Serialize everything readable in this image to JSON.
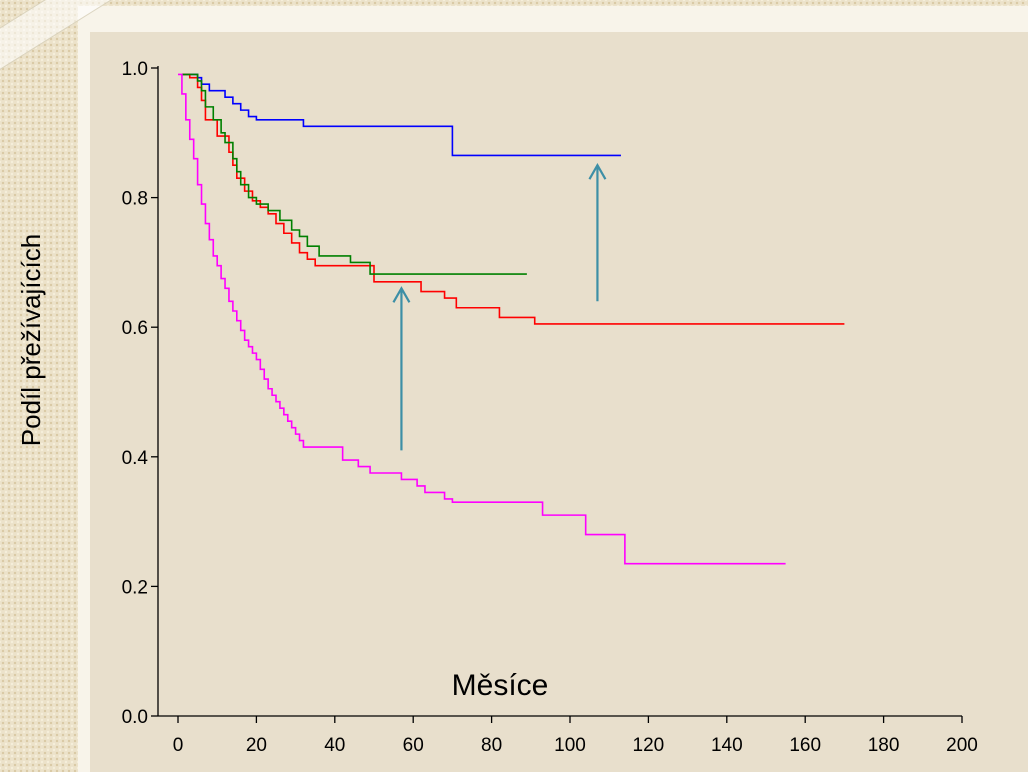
{
  "chart_data": {
    "type": "line",
    "title": "",
    "xlabel": "Měsíce",
    "ylabel": "Podíl přežívajících",
    "xlim": [
      0,
      200
    ],
    "ylim": [
      0.0,
      1.0
    ],
    "x_ticks": [
      "0",
      "20",
      "40",
      "60",
      "80",
      "100",
      "120",
      "140",
      "160",
      "180",
      "200"
    ],
    "y_ticks": [
      "0.0",
      "0.2",
      "0.4",
      "0.6",
      "0.8",
      "1.0"
    ],
    "grid": false,
    "legend": "none",
    "step": true,
    "series": [
      {
        "color": "#0000ff",
        "points": [
          [
            1,
            0.99
          ],
          [
            5,
            0.985
          ],
          [
            6,
            0.975
          ],
          [
            8,
            0.965
          ],
          [
            12,
            0.955
          ],
          [
            14,
            0.945
          ],
          [
            16,
            0.935
          ],
          [
            18,
            0.925
          ],
          [
            20,
            0.92
          ],
          [
            32,
            0.91
          ],
          [
            70,
            0.865
          ],
          [
            113,
            0.865
          ]
        ]
      },
      {
        "color": "#ff0000",
        "points": [
          [
            1,
            0.99
          ],
          [
            3,
            0.985
          ],
          [
            5,
            0.97
          ],
          [
            6,
            0.95
          ],
          [
            7,
            0.92
          ],
          [
            10,
            0.895
          ],
          [
            13,
            0.87
          ],
          [
            14,
            0.85
          ],
          [
            15,
            0.83
          ],
          [
            17,
            0.81
          ],
          [
            19,
            0.795
          ],
          [
            21,
            0.785
          ],
          [
            23,
            0.775
          ],
          [
            25,
            0.76
          ],
          [
            27,
            0.745
          ],
          [
            29,
            0.73
          ],
          [
            31,
            0.715
          ],
          [
            33,
            0.705
          ],
          [
            35,
            0.695
          ],
          [
            50,
            0.67
          ],
          [
            58,
            0.67
          ],
          [
            62,
            0.655
          ],
          [
            68,
            0.645
          ],
          [
            71,
            0.63
          ],
          [
            82,
            0.615
          ],
          [
            91,
            0.605
          ],
          [
            170,
            0.605
          ]
        ]
      },
      {
        "color": "#008000",
        "points": [
          [
            1,
            0.99
          ],
          [
            5,
            0.98
          ],
          [
            6,
            0.965
          ],
          [
            7,
            0.94
          ],
          [
            9,
            0.92
          ],
          [
            11,
            0.9
          ],
          [
            12,
            0.885
          ],
          [
            14,
            0.86
          ],
          [
            15,
            0.84
          ],
          [
            16,
            0.82
          ],
          [
            18,
            0.8
          ],
          [
            20,
            0.79
          ],
          [
            23,
            0.78
          ],
          [
            26,
            0.765
          ],
          [
            29,
            0.75
          ],
          [
            31,
            0.74
          ],
          [
            33,
            0.725
          ],
          [
            36,
            0.71
          ],
          [
            44,
            0.7
          ],
          [
            49,
            0.682
          ],
          [
            89,
            0.682
          ]
        ]
      },
      {
        "color": "#ff00ff",
        "points": [
          [
            0,
            0.99
          ],
          [
            1,
            0.96
          ],
          [
            2,
            0.92
          ],
          [
            3,
            0.89
          ],
          [
            4,
            0.86
          ],
          [
            5,
            0.82
          ],
          [
            6,
            0.79
          ],
          [
            7,
            0.76
          ],
          [
            8,
            0.735
          ],
          [
            9,
            0.71
          ],
          [
            10,
            0.695
          ],
          [
            11,
            0.675
          ],
          [
            12,
            0.66
          ],
          [
            13,
            0.64
          ],
          [
            14,
            0.625
          ],
          [
            15,
            0.61
          ],
          [
            16,
            0.595
          ],
          [
            17,
            0.58
          ],
          [
            18,
            0.57
          ],
          [
            19,
            0.56
          ],
          [
            20,
            0.55
          ],
          [
            21,
            0.535
          ],
          [
            22,
            0.52
          ],
          [
            23,
            0.505
          ],
          [
            24,
            0.495
          ],
          [
            25,
            0.485
          ],
          [
            26,
            0.475
          ],
          [
            27,
            0.465
          ],
          [
            28,
            0.455
          ],
          [
            29,
            0.445
          ],
          [
            30,
            0.435
          ],
          [
            31,
            0.425
          ],
          [
            32,
            0.415
          ],
          [
            42,
            0.395
          ],
          [
            46,
            0.385
          ],
          [
            49,
            0.375
          ],
          [
            57,
            0.365
          ],
          [
            61,
            0.355
          ],
          [
            63,
            0.345
          ],
          [
            68,
            0.335
          ],
          [
            70,
            0.33
          ],
          [
            93,
            0.31
          ],
          [
            104,
            0.28
          ],
          [
            114,
            0.235
          ],
          [
            155,
            0.235
          ]
        ]
      }
    ],
    "annotations": [
      {
        "type": "arrow",
        "color": "#3d8fa6",
        "x": 57,
        "y_from": 0.41,
        "y_to": 0.66
      },
      {
        "type": "arrow",
        "color": "#3d8fa6",
        "x": 107,
        "y_from": 0.64,
        "y_to": 0.85
      }
    ]
  }
}
